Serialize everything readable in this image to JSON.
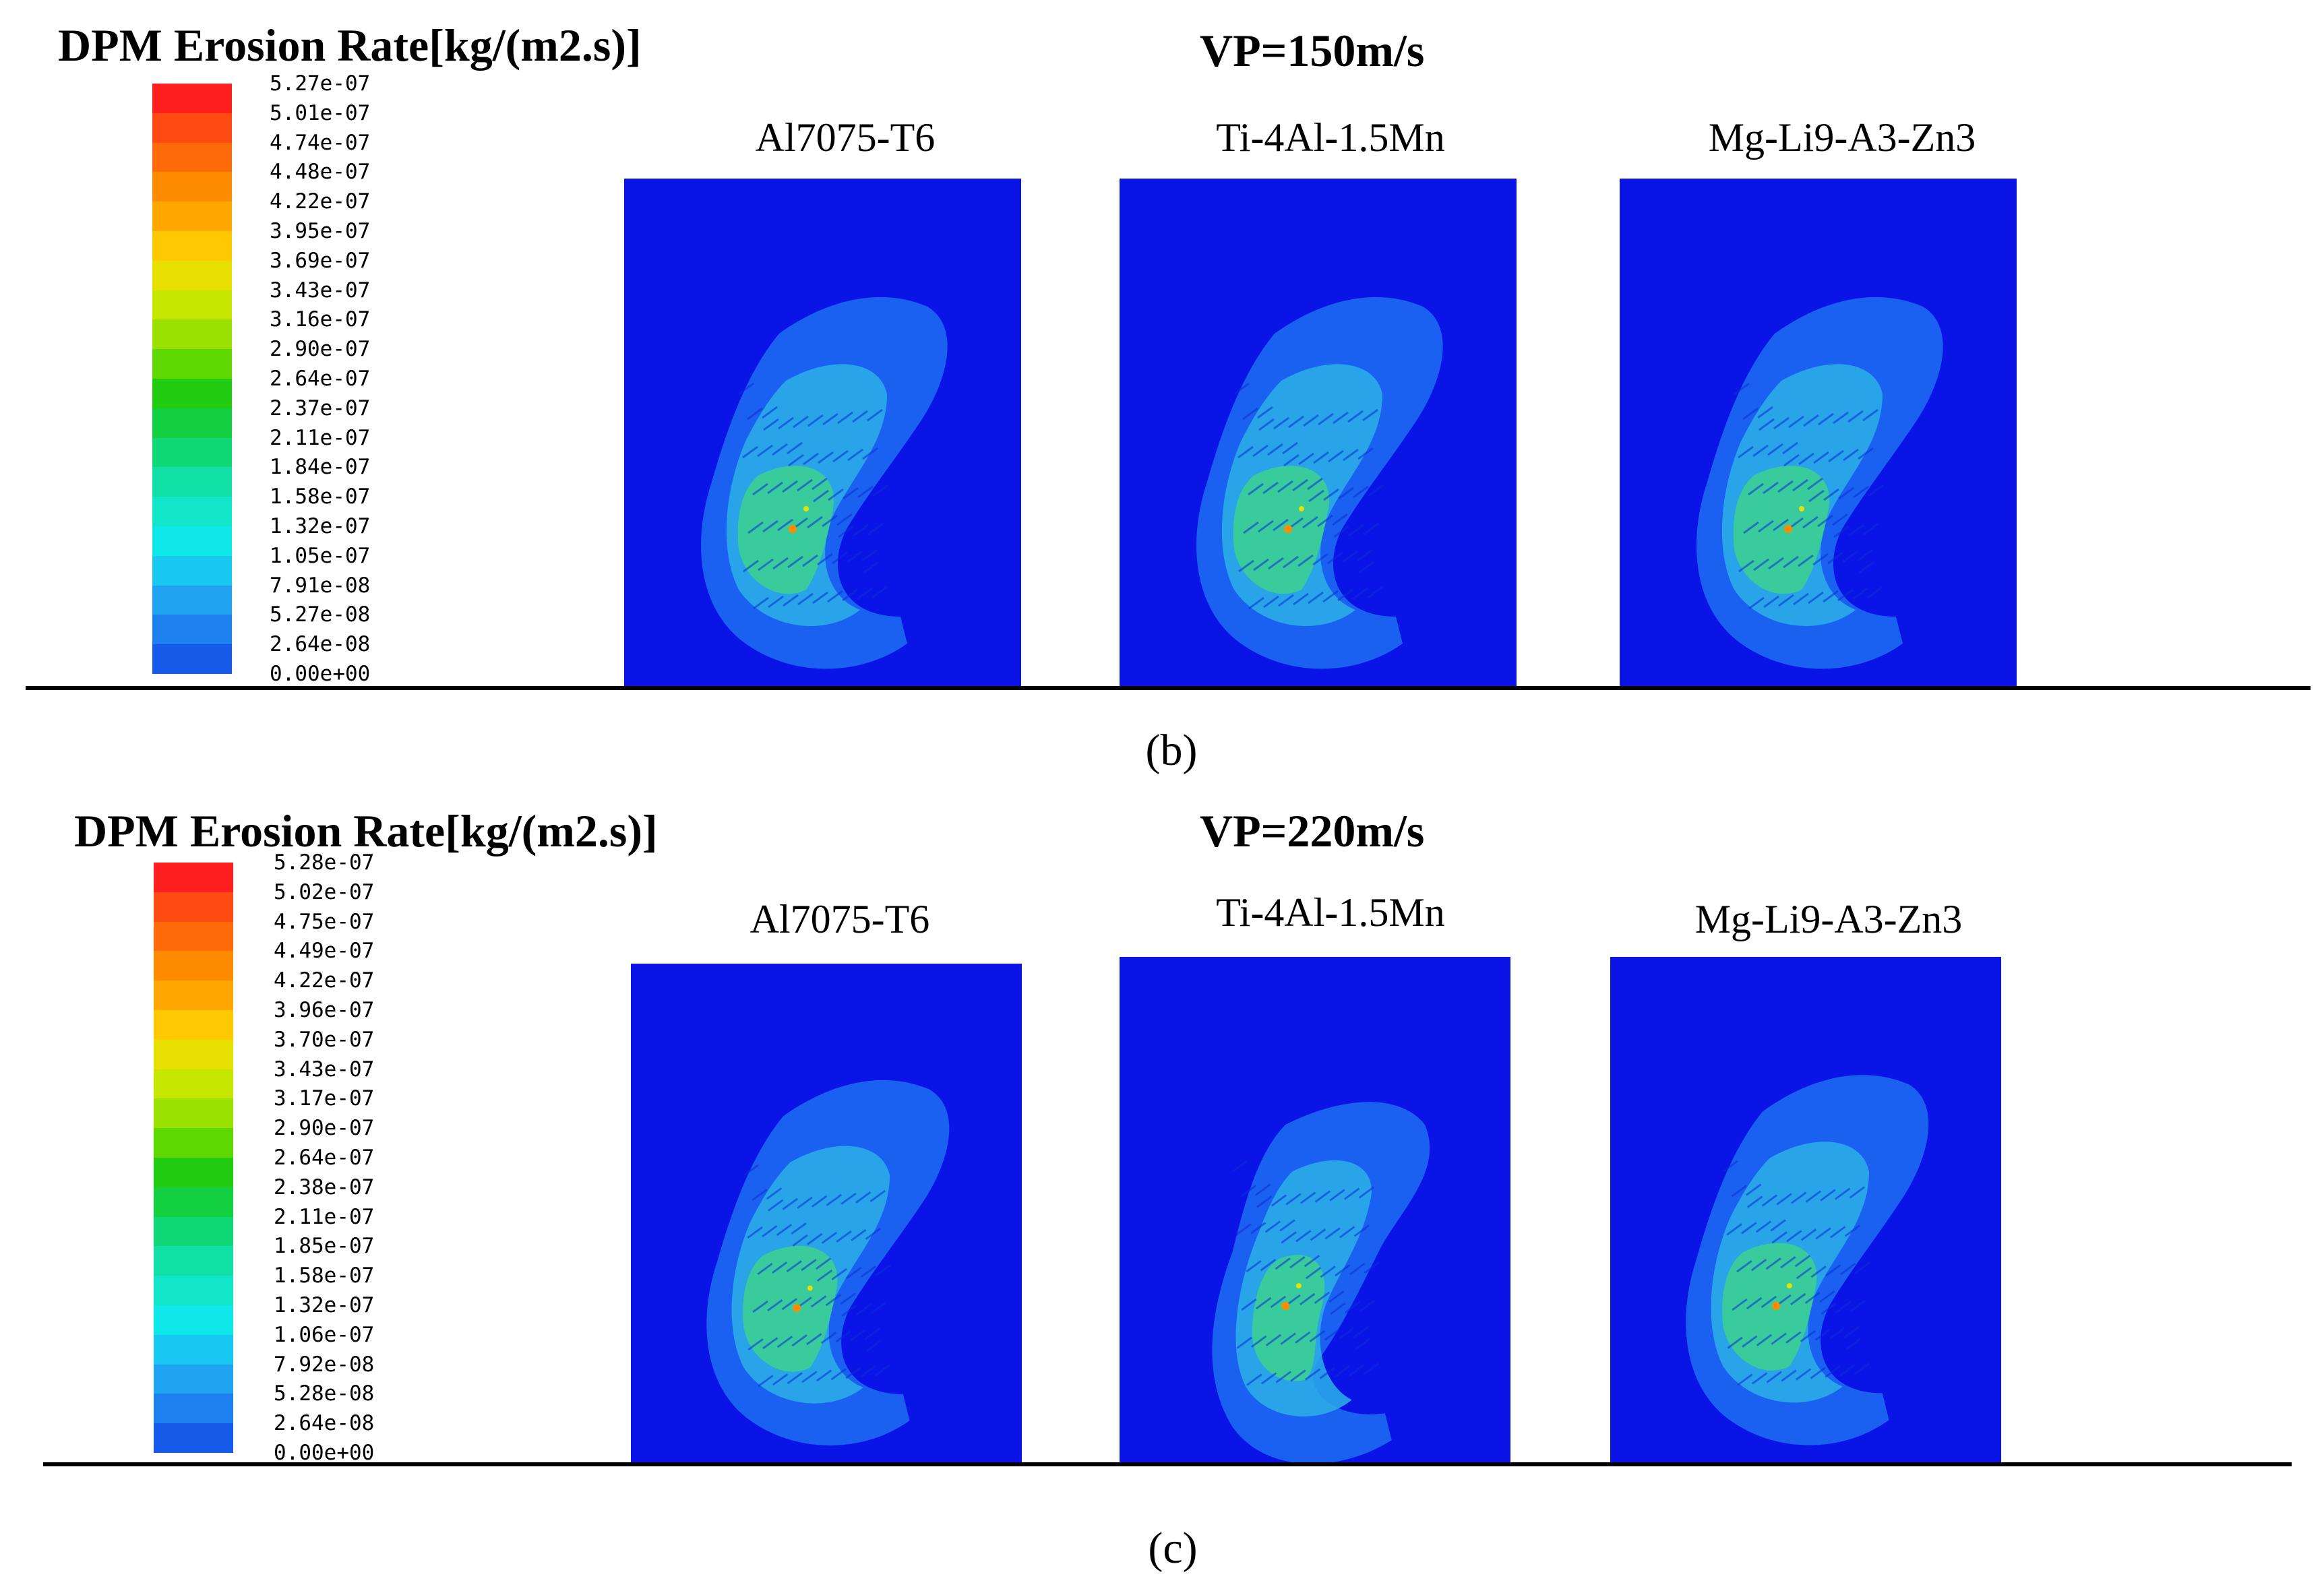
{
  "panels": [
    {
      "legend_title": "DPM Erosion Rate[kg/(m2.s)]",
      "velocity_title": "VP=150m/s",
      "caption": "(b)",
      "legend_ticks": [
        "5.27e-07",
        "5.01e-07",
        "4.74e-07",
        "4.48e-07",
        "4.22e-07",
        "3.95e-07",
        "3.69e-07",
        "3.43e-07",
        "3.16e-07",
        "2.90e-07",
        "2.64e-07",
        "2.37e-07",
        "2.11e-07",
        "1.84e-07",
        "1.58e-07",
        "1.32e-07",
        "1.05e-07",
        "7.91e-08",
        "5.27e-08",
        "2.64e-08",
        "0.00e+00"
      ],
      "materials": [
        "Al7075-T6",
        "Ti-4Al-1.5Mn",
        "Mg-Li9-A3-Zn3"
      ]
    },
    {
      "legend_title": "DPM Erosion Rate[kg/(m2.s)]",
      "velocity_title": "VP=220m/s",
      "caption": "(c)",
      "legend_ticks": [
        "5.28e-07",
        "5.02e-07",
        "4.75e-07",
        "4.49e-07",
        "4.22e-07",
        "3.96e-07",
        "3.70e-07",
        "3.43e-07",
        "3.17e-07",
        "2.90e-07",
        "2.64e-07",
        "2.38e-07",
        "2.11e-07",
        "1.85e-07",
        "1.58e-07",
        "1.32e-07",
        "1.06e-07",
        "7.92e-08",
        "5.28e-08",
        "2.64e-08",
        "0.00e+00"
      ],
      "materials": [
        "Al7075-T6",
        "Ti-4Al-1.5Mn",
        "Mg-Li9-A3-Zn3"
      ]
    }
  ],
  "colormap": [
    "#ff1f1f",
    "#ff4a12",
    "#ff6a0a",
    "#ff8c00",
    "#ffa600",
    "#ffc800",
    "#e8e000",
    "#c6e800",
    "#9ae000",
    "#5fd800",
    "#22cc10",
    "#12d040",
    "#10d877",
    "#10e0a5",
    "#12e6c8",
    "#0ee8e8",
    "#18c8f0",
    "#20a4f2",
    "#1c80ee",
    "#165aea"
  ],
  "colors": {
    "domain_blue": "#0a14e6",
    "plume_blue": "#1a6cf0"
  }
}
